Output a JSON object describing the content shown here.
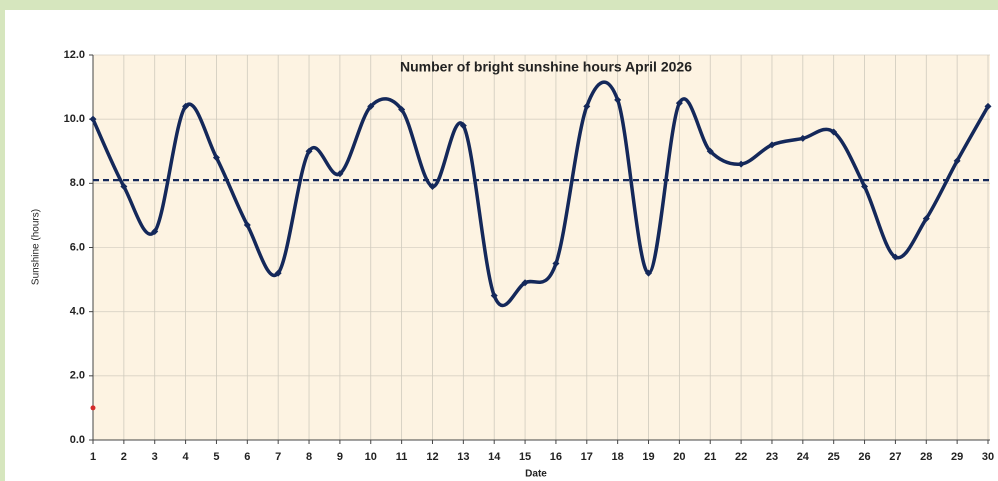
{
  "chart_data": {
    "type": "line",
    "title": "Number of bright sunshine hours April 2026",
    "x_label": "Date",
    "y_label": "Sunshine (hours)",
    "categories": [
      "1",
      "2",
      "3",
      "4",
      "5",
      "6",
      "7",
      "8",
      "9",
      "10",
      "11",
      "12",
      "13",
      "14",
      "15",
      "16",
      "17",
      "18",
      "19",
      "20",
      "21",
      "22",
      "23",
      "24",
      "25",
      "26",
      "27",
      "28",
      "29",
      "30"
    ],
    "values": [
      10.0,
      7.9,
      6.5,
      10.4,
      8.8,
      6.7,
      5.2,
      9.0,
      8.3,
      10.4,
      10.3,
      7.9,
      9.8,
      4.5,
      4.9,
      5.5,
      10.4,
      10.6,
      5.2,
      10.5,
      9.0,
      8.6,
      9.2,
      9.4,
      9.6,
      7.9,
      5.7,
      6.9,
      8.7,
      10.4
    ],
    "color": "#14285a",
    "smooth": true,
    "average": 8.1,
    "average_color": "#14285a",
    "extra_point": {
      "category_index": 0,
      "value": 1.0,
      "color": "#d42a2a"
    },
    "ylim": [
      0,
      12
    ],
    "yticks": [
      {
        "value": 0,
        "label": "0.0"
      },
      {
        "value": 2,
        "label": "2.0"
      },
      {
        "value": 4,
        "label": "4.0"
      },
      {
        "value": 6,
        "label": "6.0"
      },
      {
        "value": 8,
        "label": "8.0"
      },
      {
        "value": 10,
        "label": "10.0"
      },
      {
        "value": 12,
        "label": "12.0"
      }
    ],
    "grid": true
  }
}
